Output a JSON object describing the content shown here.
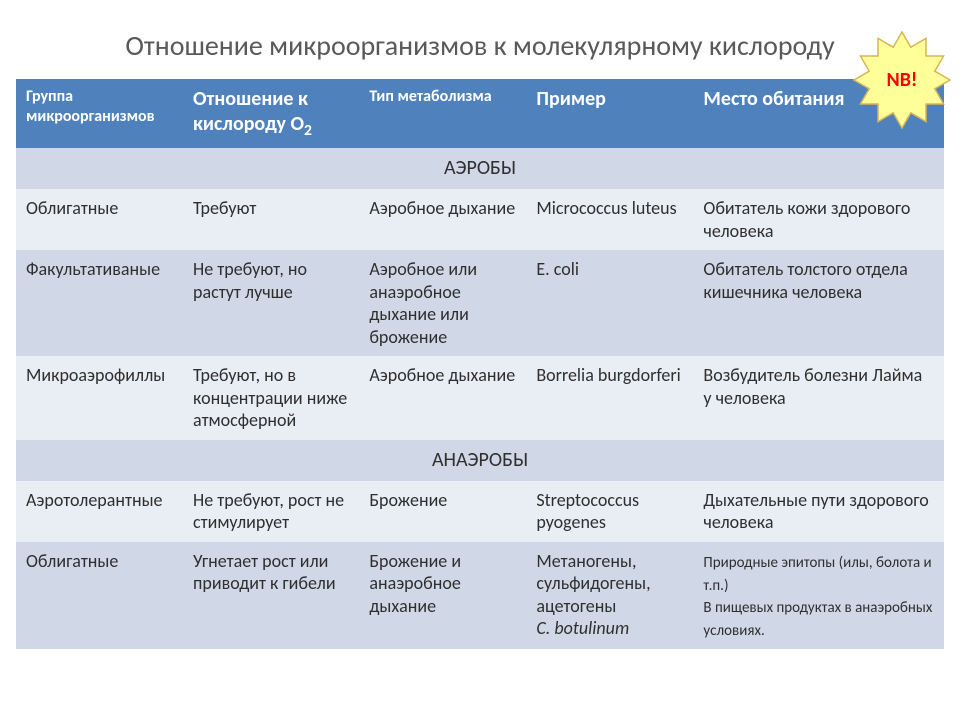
{
  "title": "Отношение микроорганизмов к молекулярному кислороду",
  "nb_label": "NB!",
  "colors": {
    "header_bg": "#4f81bd",
    "header_text": "#ffffff",
    "section_bg": "#d0d8e8",
    "row_light": "#e9edf4",
    "row_dark": "#d0d8e8",
    "burst_fill": "#ffff99",
    "burst_stroke": "#d6b656",
    "nb_text": "#ff0000",
    "title_color": "#595959"
  },
  "columns": [
    "Группа микроорганизмов",
    "Отношение к кислороду О",
    "Тип метаболизма",
    "Пример",
    "Место обитания"
  ],
  "o2_subscript": "2",
  "header_fontsizes": [
    16,
    20,
    16,
    20,
    20
  ],
  "sections": [
    {
      "label": "АЭРОБЫ",
      "rows": [
        {
          "group": "Облигатные",
          "o2": "Требуют",
          "metab": "Аэробное дыхание",
          "example": "Micrococcus luteus",
          "habitat": "Обитатель кожи здорового человека"
        },
        {
          "group": "Факультативаные",
          "o2": "Не требуют, но растут лучше",
          "metab": "Аэробное или анаэробное дыхание или брожение",
          "example": "E. coli",
          "habitat": "Обитатель толстого отдела кишечника человека"
        },
        {
          "group": "Микроаэрофиллы",
          "o2": "Требуют, но в концентрации ниже атмосферной",
          "metab": "Аэробное дыхание",
          "example": "Borrelia burgdorferi",
          "habitat": "Возбудитель болезни Лайма у человека"
        }
      ]
    },
    {
      "label": "АНАЭРОБЫ",
      "rows": [
        {
          "group": "Аэротолерантные",
          "o2": "Не требуют, рост не стимулирует",
          "metab": "Брожение",
          "example": "Streptococcus pyogenes",
          "habitat": "Дыхательные пути здорового человека"
        },
        {
          "group": "Облигатные",
          "o2": "Угнетает рост или приводит к гибели",
          "metab": "Брожение и анаэробное дыхание",
          "example_html": "Метаногены, сульфидогены, ацетогены\n<span class=\"italic\">C. botulinum</span>",
          "habitat_html": "<span class=\"small-note\">Природные эпитопы (илы, болота и т.п.)<br>В пищевых продуктах в анаэробных условиях.</span>"
        }
      ]
    }
  ]
}
